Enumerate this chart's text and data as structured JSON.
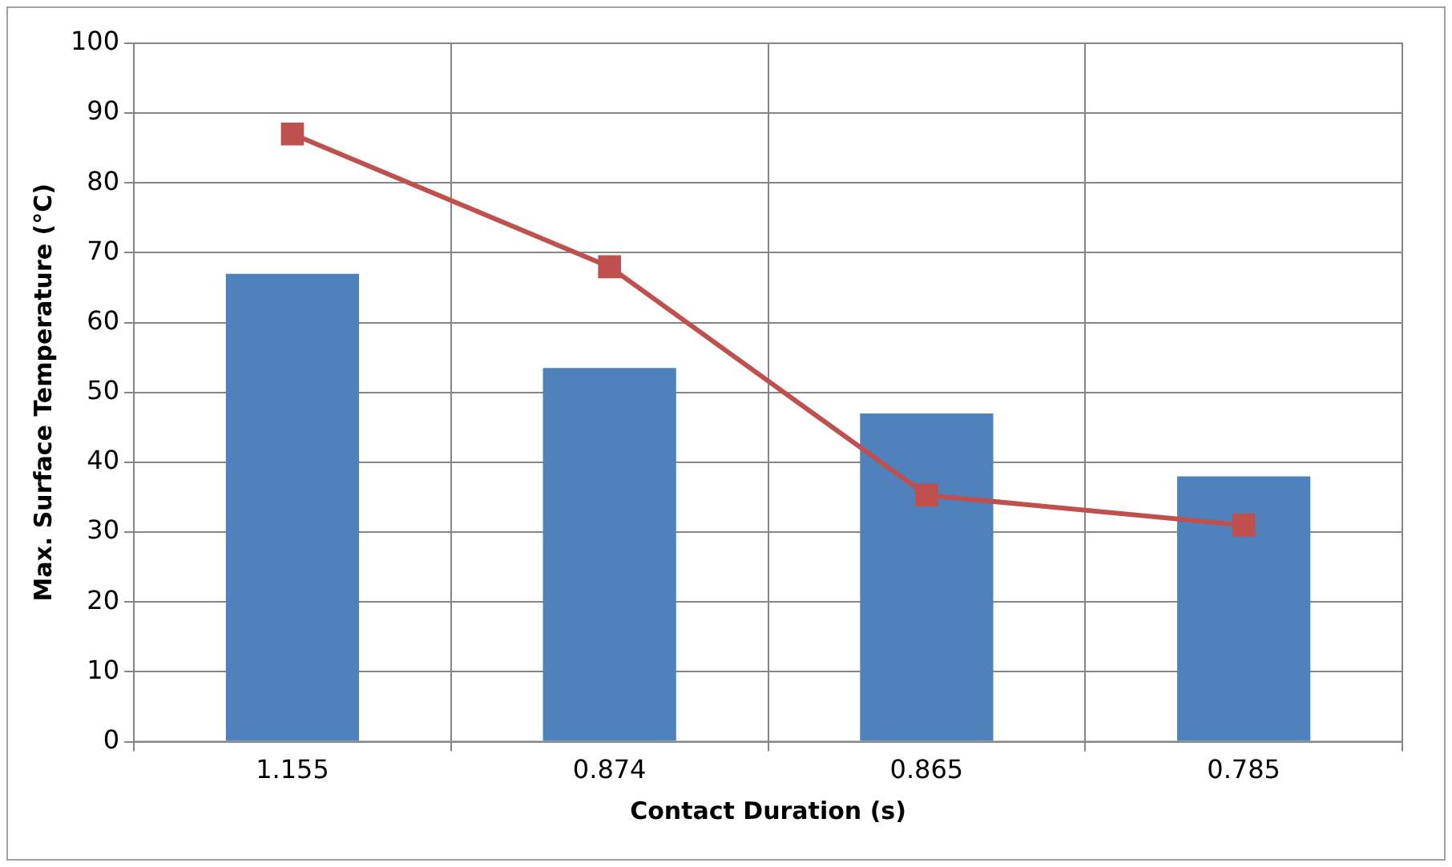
{
  "chart_data": {
    "type": "bar",
    "xlabel": "Contact Duration (s)",
    "ylabel": "Max. Surface Temperature (°C)",
    "categories": [
      "1.155",
      "0.874",
      "0.865",
      "0.785"
    ],
    "series": [
      {
        "color": "#4f81bd",
        "values": [
          67,
          53.5,
          47,
          38
        ]
      },
      {
        "type": "line",
        "color": "#c0504d",
        "values": [
          87,
          68,
          35.3,
          31
        ],
        "marker": "square"
      }
    ],
    "ylim": [
      0,
      100
    ],
    "yticks": [
      0,
      10,
      20,
      30,
      40,
      50,
      60,
      70,
      80,
      90,
      100
    ],
    "grid": true,
    "legend": false
  }
}
